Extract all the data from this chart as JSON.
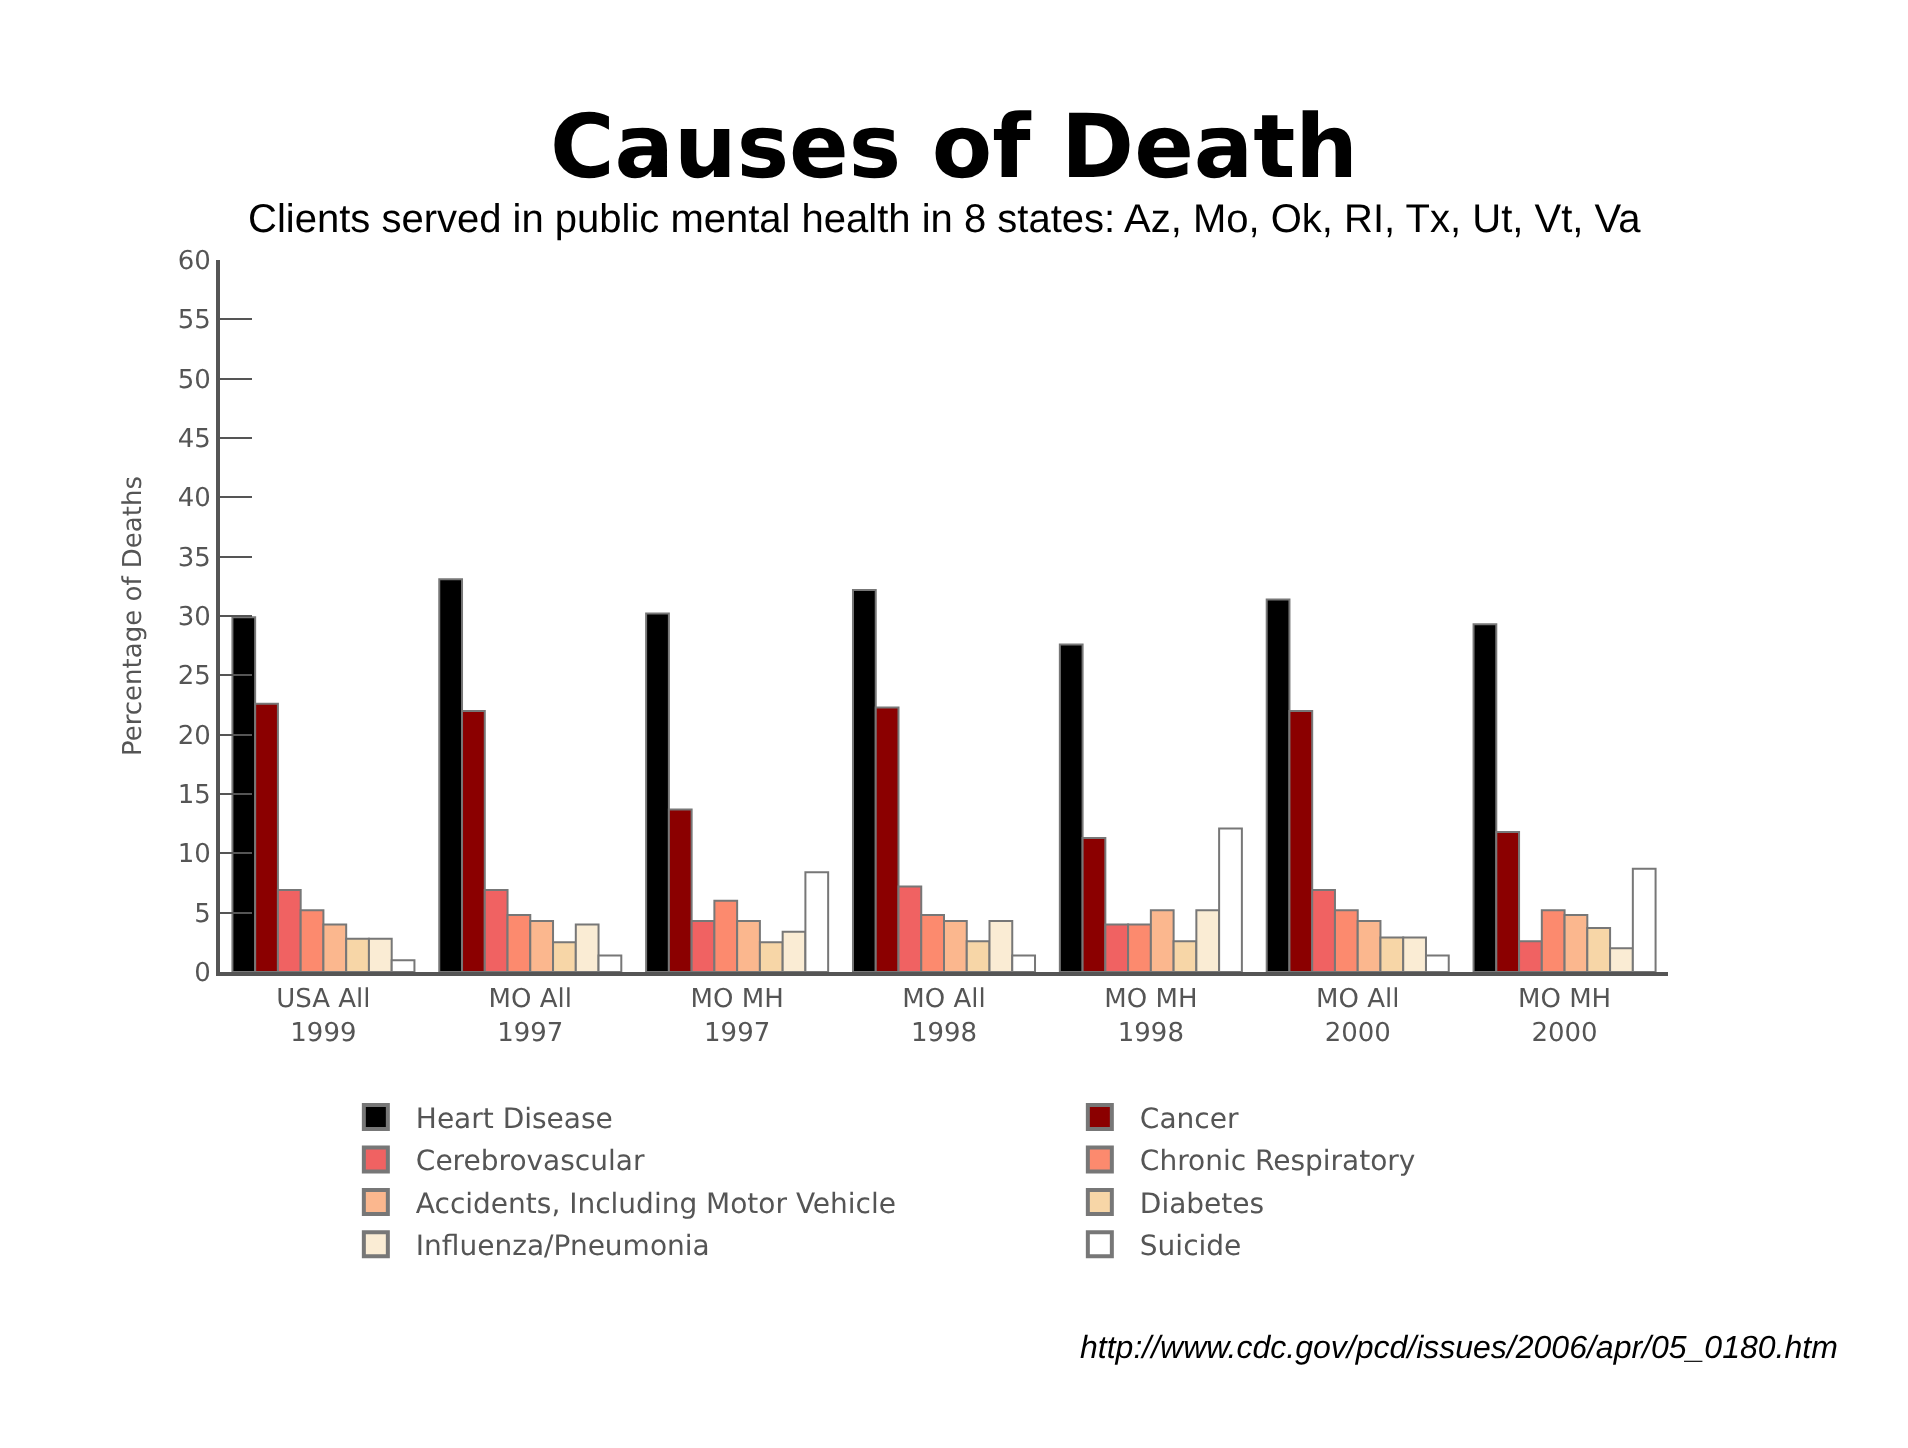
{
  "chart_data": {
    "type": "bar",
    "title": "Causes of Death",
    "subtitle": "Clients served in public mental health in 8 states: Az, Mo, Ok, RI, Tx, Ut, Vt, Va",
    "ylabel": "Percentage of Deaths",
    "categories": [
      "USA All 1999",
      "MO All 1997",
      "MO MH 1997",
      "MO All 1998",
      "MO MH 1998",
      "MO All 2000",
      "MO MH 2000"
    ],
    "series": [
      {
        "name": "Heart Disease",
        "color": "#000000",
        "values": [
          29.9,
          33.1,
          30.2,
          32.2,
          27.6,
          31.4,
          29.3
        ]
      },
      {
        "name": "Cancer",
        "color": "#8b0000",
        "values": [
          22.6,
          22.0,
          13.7,
          22.3,
          11.3,
          22.0,
          11.8
        ]
      },
      {
        "name": "Cerebrovascular",
        "color": "#f06262",
        "values": [
          6.9,
          6.9,
          4.3,
          7.2,
          4.0,
          6.9,
          2.6
        ]
      },
      {
        "name": "Chronic Respiratory",
        "color": "#fc8a6e",
        "values": [
          5.2,
          4.8,
          6.0,
          4.8,
          4.0,
          5.2,
          5.2
        ]
      },
      {
        "name": "Accidents, Including Motor Vehicle",
        "color": "#fbb78e",
        "values": [
          4.0,
          4.3,
          4.3,
          4.3,
          5.2,
          4.3,
          4.8
        ]
      },
      {
        "name": "Diabetes",
        "color": "#f7d6a7",
        "values": [
          2.8,
          2.5,
          2.5,
          2.6,
          2.6,
          2.9,
          3.7
        ]
      },
      {
        "name": "Influenza/Pneumonia",
        "color": "#faecd4",
        "values": [
          2.8,
          4.0,
          3.4,
          4.3,
          5.2,
          2.9,
          2.0
        ]
      },
      {
        "name": "Suicide",
        "color": "#ffffff",
        "values": [
          1.0,
          1.4,
          8.4,
          1.4,
          12.1,
          1.4,
          8.7
        ]
      }
    ],
    "ylim": [
      0,
      60
    ],
    "yticks": [
      0,
      5,
      10,
      15,
      20,
      25,
      30,
      35,
      40,
      45,
      50,
      55,
      60
    ],
    "legend": "bottom",
    "annotations": [
      "http://www.cdc.gov/pcd/issues/2006/apr/05_0180.htm"
    ]
  }
}
